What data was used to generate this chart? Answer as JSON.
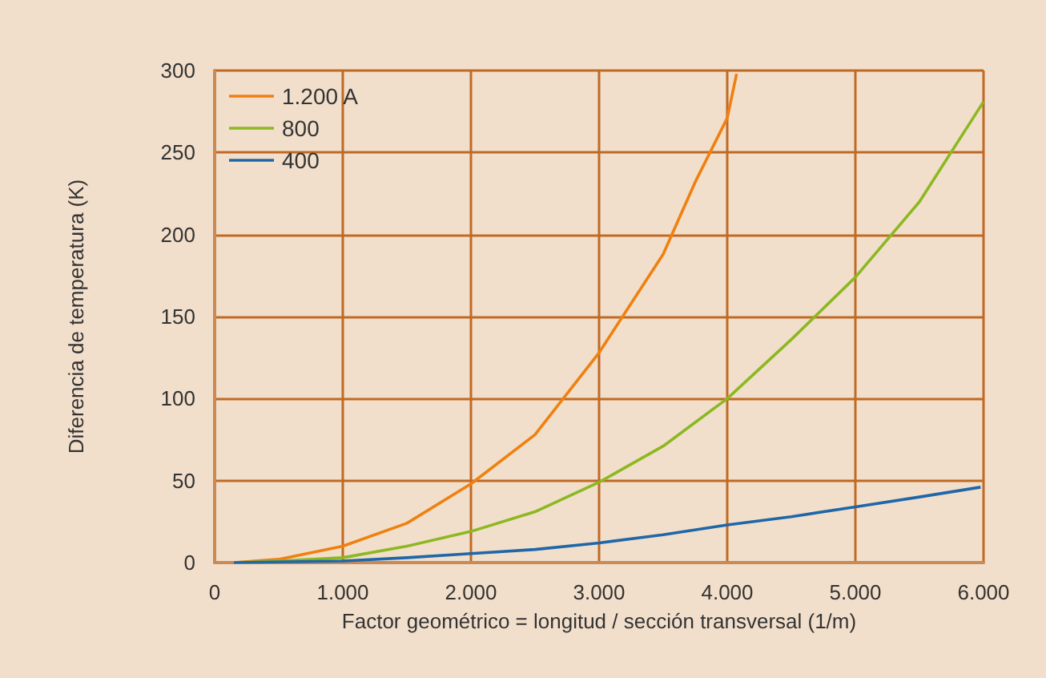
{
  "chart_data": {
    "type": "line",
    "xlabel": "Factor geométrico = longitud / sección transversal (1/m)",
    "ylabel": "Diferencia de temperatura (K)",
    "xlim": [
      0,
      6000
    ],
    "ylim": [
      0,
      300
    ],
    "xticks": [
      0,
      {
        "value": 1000,
        "label": "1.000"
      },
      {
        "value": 2000,
        "label": "2.000"
      },
      {
        "value": 3000,
        "label": "3.000"
      },
      {
        "value": 4000,
        "label": "4.000"
      },
      {
        "value": 5000,
        "label": "5.000"
      },
      {
        "value": 6000,
        "label": "6.000"
      }
    ],
    "yticks": [
      0,
      50,
      100,
      150,
      200,
      250,
      300
    ],
    "grid": true,
    "legend": "top left",
    "marker": "none",
    "line_style": "solid",
    "series": [
      {
        "name": "1.200 A",
        "color": "#f08010",
        "x": [
          150,
          500,
          1000,
          1500,
          2000,
          2500,
          3000,
          3500,
          3750,
          4000,
          4073
        ],
        "values": [
          0,
          2,
          10,
          24,
          48,
          78,
          128,
          188,
          232,
          271,
          298
        ]
      },
      {
        "name": "800",
        "color": "#8cb822",
        "x": [
          150,
          500,
          1000,
          1500,
          2000,
          2500,
          3000,
          3500,
          4000,
          4500,
          5000,
          5500,
          6000
        ],
        "values": [
          0,
          1,
          3,
          10,
          19,
          31,
          49,
          71,
          100,
          136,
          174,
          220,
          281
        ]
      },
      {
        "name": "400",
        "color": "#1f67a8",
        "x": [
          150,
          1000,
          1500,
          2000,
          2500,
          3000,
          3500,
          4000,
          4500,
          5000,
          5500,
          5977
        ],
        "values": [
          0,
          1,
          3,
          5.5,
          8,
          12,
          17,
          23,
          28,
          34,
          40,
          46
        ]
      }
    ]
  }
}
